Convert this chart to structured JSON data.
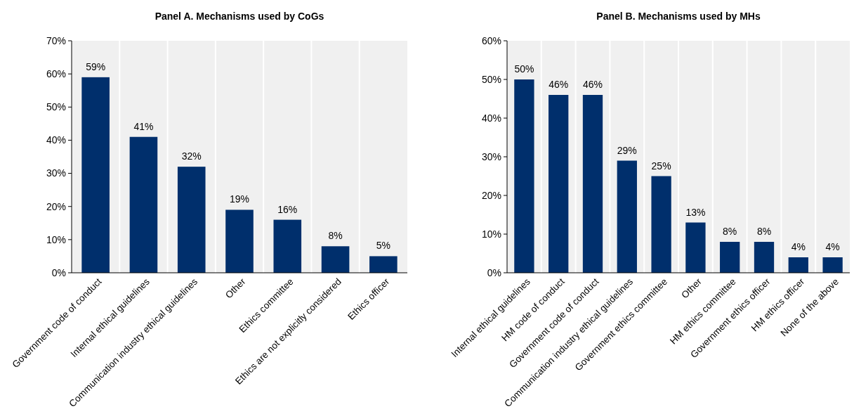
{
  "chart_data": [
    {
      "type": "bar",
      "title": "Panel A. Mechanisms used by CoGs",
      "categories": [
        "Government code of conduct",
        "Internal ethical guidelines",
        "Communication industry ethical guidelines",
        "Other",
        "Ethics committee",
        "Ethics are not explicitly considered",
        "Ethics officer"
      ],
      "values": [
        59,
        41,
        32,
        19,
        16,
        8,
        5
      ],
      "value_labels": [
        "59%",
        "41%",
        "32%",
        "19%",
        "16%",
        "8%",
        "5%"
      ],
      "color": "#002f6c",
      "ylim": [
        0,
        70
      ],
      "yticks": [
        {
          "value": 0,
          "label": "0%"
        },
        {
          "value": 10,
          "label": "10%"
        },
        {
          "value": 20,
          "label": "20%"
        },
        {
          "value": 30,
          "label": "30%"
        },
        {
          "value": 40,
          "label": "40%"
        },
        {
          "value": 50,
          "label": "50%"
        },
        {
          "value": 60,
          "label": "60%"
        },
        {
          "value": 70,
          "label": "70%"
        }
      ],
      "grid": "x"
    },
    {
      "type": "bar",
      "title": "Panel B. Mechanisms used by MHs",
      "categories": [
        "Internal ethical guidelines",
        "HM code of conduct",
        "Government code of conduct",
        "Communication industry ethical guidelines",
        "Government ethics committee",
        "Other",
        "HM ethics committee",
        "Government ethics officer",
        "HM ethics officer",
        "None of the above"
      ],
      "values": [
        50,
        46,
        46,
        29,
        25,
        13,
        8,
        8,
        4,
        4
      ],
      "value_labels": [
        "50%",
        "46%",
        "46%",
        "29%",
        "25%",
        "13%",
        "8%",
        "8%",
        "4%",
        "4%"
      ],
      "color": "#002f6c",
      "ylim": [
        0,
        60
      ],
      "yticks": [
        {
          "value": 0,
          "label": "0%"
        },
        {
          "value": 10,
          "label": "10%"
        },
        {
          "value": 20,
          "label": "20%"
        },
        {
          "value": 30,
          "label": "30%"
        },
        {
          "value": 40,
          "label": "40%"
        },
        {
          "value": 50,
          "label": "50%"
        },
        {
          "value": 60,
          "label": "60%"
        }
      ],
      "grid": "x"
    }
  ]
}
